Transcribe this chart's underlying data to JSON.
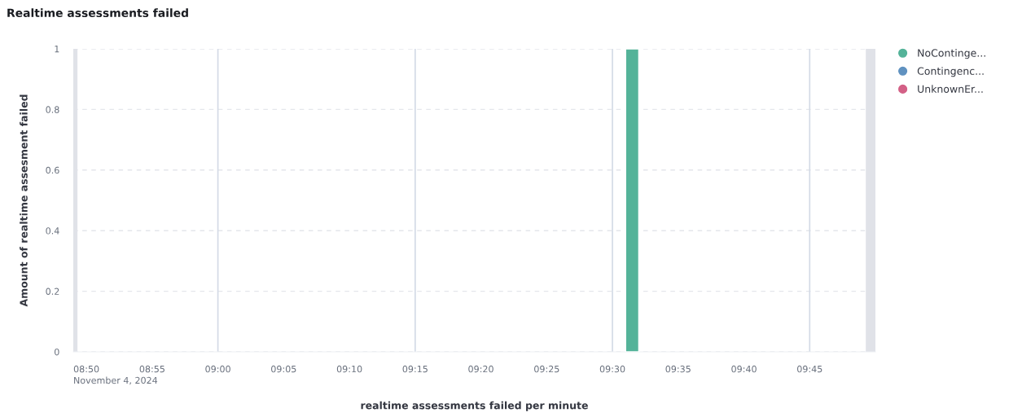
{
  "chart_data": {
    "type": "bar",
    "title": "Realtime assessments failed",
    "xlabel": "realtime assessments failed per minute",
    "ylabel": "Amount of realtime assesment failed",
    "xlim": [
      8.8167,
      9.8333
    ],
    "xticks": [
      {
        "value": 8.8333,
        "label": "08:50"
      },
      {
        "value": 8.9167,
        "label": "08:55"
      },
      {
        "value": 9.0,
        "label": "09:00"
      },
      {
        "value": 9.0833,
        "label": "09:05"
      },
      {
        "value": 9.1667,
        "label": "09:10"
      },
      {
        "value": 9.25,
        "label": "09:15"
      },
      {
        "value": 9.3333,
        "label": "09:20"
      },
      {
        "value": 9.4167,
        "label": "09:25"
      },
      {
        "value": 9.5,
        "label": "09:30"
      },
      {
        "value": 9.5833,
        "label": "09:35"
      },
      {
        "value": 9.6667,
        "label": "09:40"
      },
      {
        "value": 9.75,
        "label": "09:45"
      }
    ],
    "ylim": [
      0,
      1
    ],
    "yticks": [
      0,
      0.2,
      0.4,
      0.6,
      0.8,
      1
    ],
    "x": [
      9.5167
    ],
    "series": [
      {
        "name": "NoContinge...",
        "color": "#54b399",
        "values": [
          1
        ]
      },
      {
        "name": "Contingenc...",
        "color": "#6092c0",
        "values": [
          null
        ]
      },
      {
        "name": "UnknownEr...",
        "color": "#d36086",
        "values": [
          null
        ]
      }
    ],
    "ref_lines": [
      {
        "axis": "x",
        "value": 9.0,
        "color": "#d3dae6"
      },
      {
        "axis": "x",
        "value": 9.25,
        "color": "#d3dae6"
      },
      {
        "axis": "x",
        "value": 9.5,
        "color": "#d3dae6"
      },
      {
        "axis": "x",
        "value": 9.75,
        "color": "#d3dae6"
      }
    ],
    "bands": [
      {
        "axis": "x",
        "from": 8.8167,
        "to": 8.822,
        "color": "#e0e2e8"
      },
      {
        "axis": "x",
        "from": 9.8211,
        "to": 9.8333,
        "color": "#e0e2e8"
      }
    ],
    "annotations": [
      "November 4, 2024"
    ],
    "grid": "y",
    "legend": "top right"
  }
}
